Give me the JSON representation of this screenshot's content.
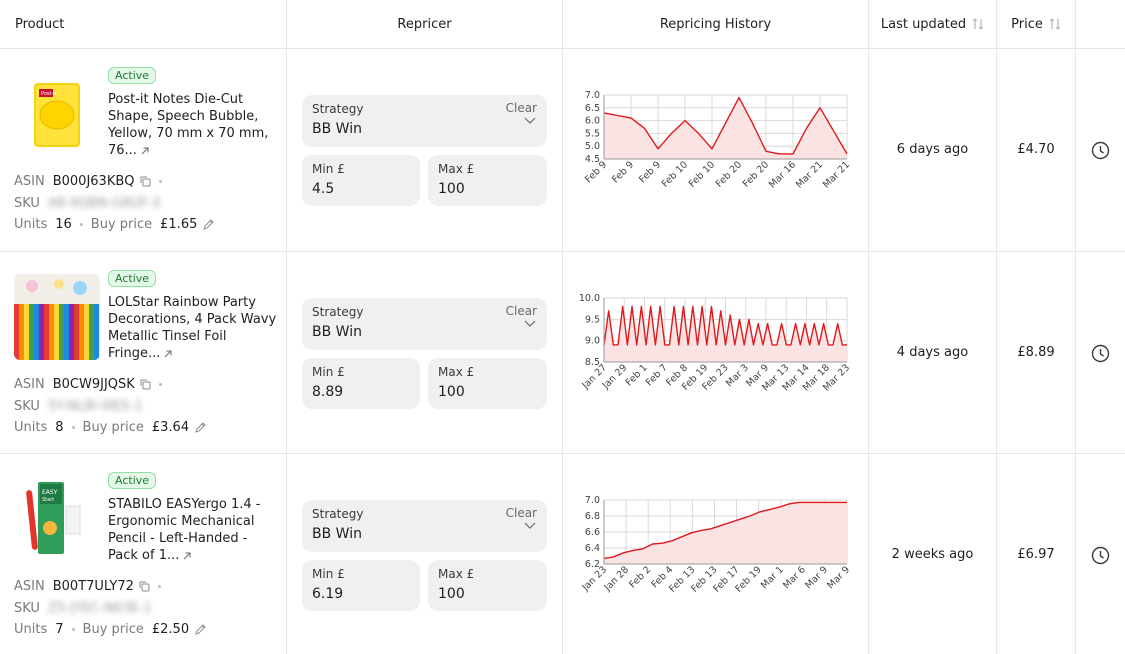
{
  "header": {
    "product": "Product",
    "repricer": "Repricer",
    "history": "Repricing History",
    "last_updated": "Last updated",
    "price": "Price"
  },
  "labels": {
    "asin": "ASIN",
    "sku": "SKU",
    "units": "Units",
    "buy_price": "Buy price",
    "strategy": "Strategy",
    "clear": "Clear",
    "min": "Min £",
    "max": "Max £"
  },
  "colors": {
    "chart_line": "#e0191b",
    "chart_fill": "#fbe3e4",
    "badge_bg": "#e4f8e7",
    "badge_text": "#1e7a31"
  },
  "rows": [
    {
      "status": "Active",
      "title": "Post-it Notes Die-Cut Shape, Speech Bubble, Yellow, 70 mm x 70 mm, 76...",
      "asin": "B000J63KBQ",
      "sku": "A8-9QBN-G8UF-3",
      "units": "16",
      "buy_price": "£1.65",
      "strategy": "BB Win",
      "min": "4.5",
      "max": "100",
      "last_updated": "6 days ago",
      "price": "£4.70",
      "image_icon": "sticky-note-product-image"
    },
    {
      "status": "Active",
      "title": "LOLStar Rainbow Party Decorations, 4 Pack Wavy Metallic Tinsel Foil Fringe...",
      "asin": "B0CW9JJQSK",
      "sku": "5Y-NL8I-0IES-1",
      "units": "8",
      "buy_price": "£3.64",
      "strategy": "BB Win",
      "min": "8.89",
      "max": "100",
      "last_updated": "4 days ago",
      "price": "£8.89",
      "image_icon": "rainbow-tinsel-product-image"
    },
    {
      "status": "Active",
      "title": "STABILO EASYergo 1.4 - Ergonomic Mechanical Pencil - Left-Handed - Pack of 1...",
      "asin": "B00T7ULY72",
      "sku": "Z5-JYEC-N63E-1",
      "units": "7",
      "buy_price": "£2.50",
      "strategy": "BB Win",
      "min": "6.19",
      "max": "100",
      "last_updated": "2 weeks ago",
      "price": "£6.97",
      "image_icon": "pencil-product-image"
    }
  ],
  "chart_data": [
    {
      "type": "area",
      "title": "",
      "xlabel": "",
      "ylabel": "",
      "x_ticks": [
        "Feb 9",
        "Feb 9",
        "Feb 9",
        "Feb 10",
        "Feb 10",
        "Feb 20",
        "Feb 20",
        "Mar 16",
        "Mar 21",
        "Mar 21"
      ],
      "y_ticks": [
        4.5,
        5.0,
        5.5,
        6.0,
        6.5,
        7.0
      ],
      "ylim": [
        4.5,
        7.0
      ],
      "values": [
        6.3,
        6.2,
        6.1,
        5.7,
        4.9,
        5.5,
        6.0,
        5.5,
        4.9,
        5.9,
        6.9,
        5.9,
        4.8,
        4.7,
        4.7,
        5.7,
        6.5,
        5.6,
        4.7
      ],
      "grid": true
    },
    {
      "type": "area",
      "title": "",
      "xlabel": "",
      "ylabel": "",
      "x_ticks": [
        "Jan 27",
        "Jan 29",
        "Feb 1",
        "Feb 7",
        "Feb 8",
        "Feb 19",
        "Feb 23",
        "Mar 3",
        "Mar 9",
        "Mar 13",
        "Mar 14",
        "Mar 18",
        "Mar 23"
      ],
      "y_ticks": [
        8.5,
        9.0,
        9.5,
        10.0
      ],
      "ylim": [
        8.5,
        10.0
      ],
      "values": [
        8.9,
        9.7,
        8.9,
        8.9,
        9.8,
        8.9,
        9.8,
        8.9,
        9.8,
        8.9,
        9.8,
        8.9,
        9.8,
        8.9,
        8.9,
        9.8,
        8.9,
        9.8,
        8.9,
        9.8,
        8.9,
        9.8,
        8.9,
        9.8,
        8.9,
        9.7,
        8.9,
        9.6,
        8.9,
        9.5,
        8.9,
        9.5,
        8.9,
        9.4,
        8.9,
        9.4,
        8.9,
        8.9,
        9.4,
        8.9,
        8.9,
        9.4,
        8.9,
        9.4,
        8.9,
        9.4,
        8.9,
        9.4,
        8.9,
        8.9,
        9.4,
        8.9,
        8.9
      ],
      "grid": true
    },
    {
      "type": "area",
      "title": "",
      "xlabel": "",
      "ylabel": "",
      "x_ticks": [
        "Jan 23",
        "Jan 28",
        "Feb 2",
        "Feb 4",
        "Feb 13",
        "Feb 13",
        "Feb 17",
        "Feb 19",
        "Mar 1",
        "Mar 6",
        "Mar 9",
        "Mar 9"
      ],
      "y_ticks": [
        6.2,
        6.4,
        6.6,
        6.8,
        7.0
      ],
      "ylim": [
        6.2,
        7.0
      ],
      "values": [
        6.27,
        6.29,
        6.34,
        6.37,
        6.39,
        6.45,
        6.46,
        6.49,
        6.54,
        6.59,
        6.62,
        6.64,
        6.68,
        6.72,
        6.76,
        6.8,
        6.85,
        6.88,
        6.91,
        6.95,
        6.97,
        6.97,
        6.97,
        6.97,
        6.97,
        6.97
      ],
      "grid": true
    }
  ]
}
